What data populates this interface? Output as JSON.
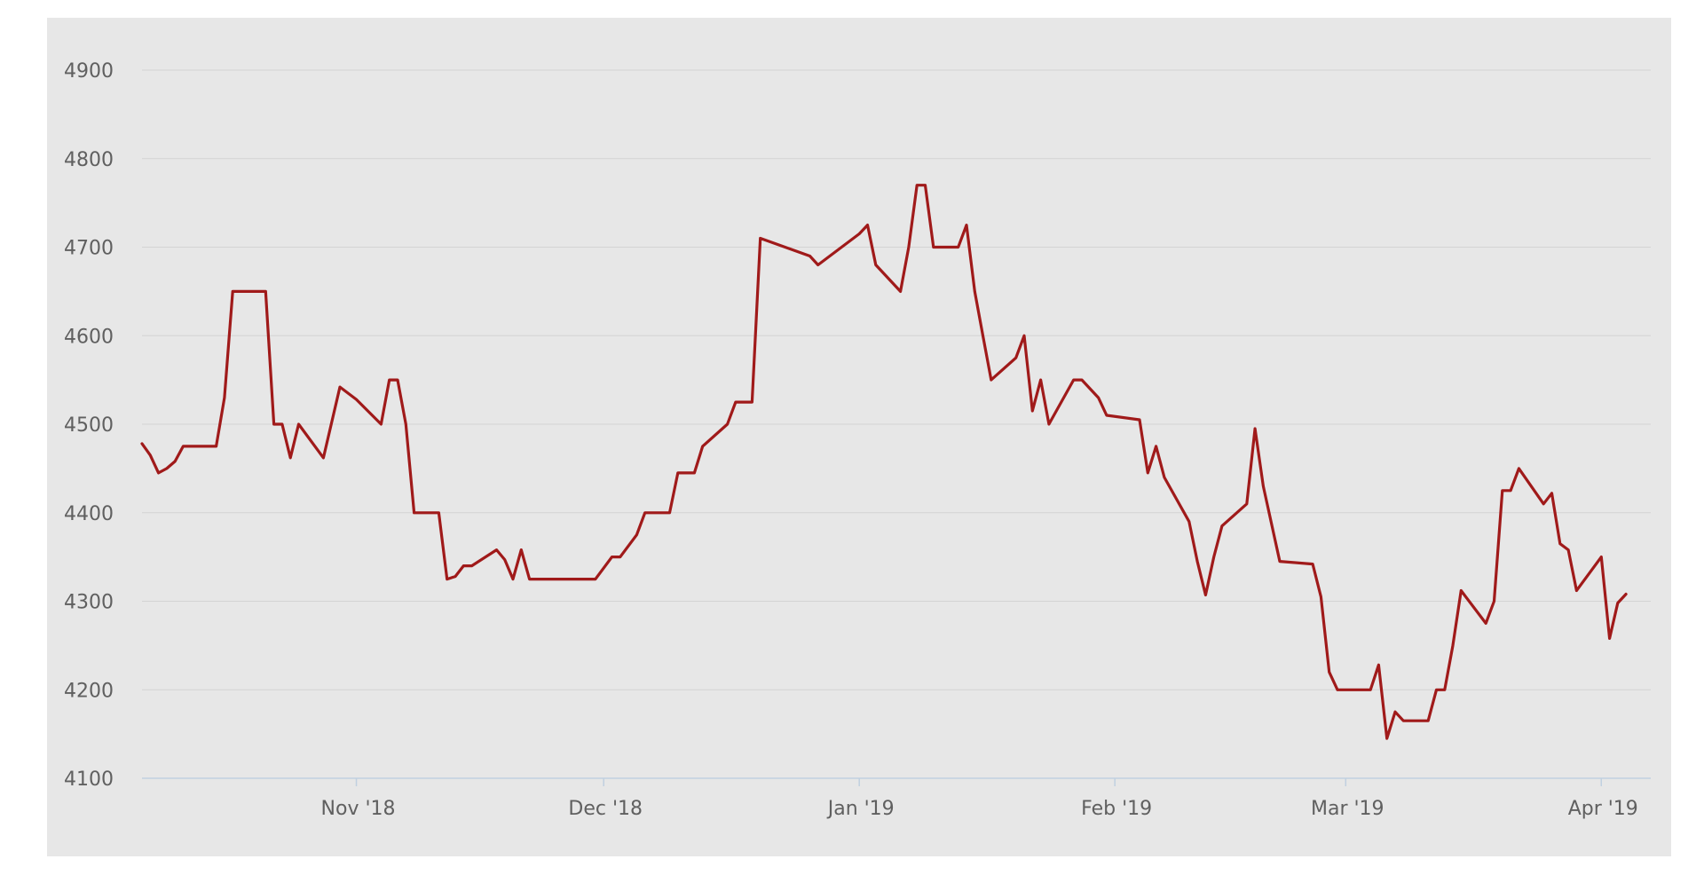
{
  "chart_data": {
    "type": "line",
    "title": "",
    "xlabel": "",
    "ylabel": "",
    "ylim": [
      4100,
      4900
    ],
    "xlim": [
      "2018-10-06",
      "2019-04-07"
    ],
    "y_ticks": [
      4100,
      4200,
      4300,
      4400,
      4500,
      4600,
      4700,
      4800,
      4900
    ],
    "x_ticks": [
      {
        "date": "2018-11-01",
        "label": "Nov '18"
      },
      {
        "date": "2018-12-01",
        "label": "Dec '18"
      },
      {
        "date": "2019-01-01",
        "label": "Jan '19"
      },
      {
        "date": "2019-02-01",
        "label": "Feb '19"
      },
      {
        "date": "2019-03-01",
        "label": "Mar '19"
      },
      {
        "date": "2019-04-01",
        "label": "Apr '19"
      }
    ],
    "grid": true,
    "legend": "none",
    "line_color": "#a01a1a",
    "series": [
      {
        "points": [
          [
            "2018-10-06",
            4478
          ],
          [
            "2018-10-07",
            4465
          ],
          [
            "2018-10-08",
            4445
          ],
          [
            "2018-10-09",
            4450
          ],
          [
            "2018-10-10",
            4458
          ],
          [
            "2018-10-11",
            4475
          ],
          [
            "2018-10-15",
            4475
          ],
          [
            "2018-10-16",
            4530
          ],
          [
            "2018-10-17",
            4650
          ],
          [
            "2018-10-21",
            4650
          ],
          [
            "2018-10-22",
            4500
          ],
          [
            "2018-10-23",
            4500
          ],
          [
            "2018-10-24",
            4462
          ],
          [
            "2018-10-25",
            4500
          ],
          [
            "2018-10-28",
            4462
          ],
          [
            "2018-10-30",
            4542
          ],
          [
            "2018-11-01",
            4528
          ],
          [
            "2018-11-04",
            4500
          ],
          [
            "2018-11-05",
            4550
          ],
          [
            "2018-11-06",
            4550
          ],
          [
            "2018-11-07",
            4500
          ],
          [
            "2018-11-08",
            4400
          ],
          [
            "2018-11-11",
            4400
          ],
          [
            "2018-11-12",
            4325
          ],
          [
            "2018-11-13",
            4328
          ],
          [
            "2018-11-14",
            4340
          ],
          [
            "2018-11-15",
            4340
          ],
          [
            "2018-11-18",
            4358
          ],
          [
            "2018-11-19",
            4347
          ],
          [
            "2018-11-20",
            4325
          ],
          [
            "2018-11-21",
            4358
          ],
          [
            "2018-11-22",
            4325
          ],
          [
            "2018-11-30",
            4325
          ],
          [
            "2018-12-02",
            4350
          ],
          [
            "2018-12-03",
            4350
          ],
          [
            "2018-12-05",
            4375
          ],
          [
            "2018-12-06",
            4400
          ],
          [
            "2018-12-09",
            4400
          ],
          [
            "2018-12-10",
            4445
          ],
          [
            "2018-12-12",
            4445
          ],
          [
            "2018-12-13",
            4475
          ],
          [
            "2018-12-16",
            4500
          ],
          [
            "2018-12-17",
            4525
          ],
          [
            "2018-12-19",
            4525
          ],
          [
            "2018-12-20",
            4710
          ],
          [
            "2018-12-26",
            4690
          ],
          [
            "2018-12-27",
            4680
          ],
          [
            "2019-01-01",
            4715
          ],
          [
            "2019-01-02",
            4725
          ],
          [
            "2019-01-03",
            4680
          ],
          [
            "2019-01-06",
            4650
          ],
          [
            "2019-01-07",
            4700
          ],
          [
            "2019-01-08",
            4770
          ],
          [
            "2019-01-09",
            4770
          ],
          [
            "2019-01-10",
            4700
          ],
          [
            "2019-01-13",
            4700
          ],
          [
            "2019-01-14",
            4725
          ],
          [
            "2019-01-15",
            4650
          ],
          [
            "2019-01-16",
            4600
          ],
          [
            "2019-01-17",
            4550
          ],
          [
            "2019-01-20",
            4575
          ],
          [
            "2019-01-21",
            4600
          ],
          [
            "2019-01-22",
            4515
          ],
          [
            "2019-01-23",
            4550
          ],
          [
            "2019-01-24",
            4500
          ],
          [
            "2019-01-27",
            4550
          ],
          [
            "2019-01-28",
            4550
          ],
          [
            "2019-01-30",
            4530
          ],
          [
            "2019-01-31",
            4510
          ],
          [
            "2019-02-04",
            4505
          ],
          [
            "2019-02-05",
            4445
          ],
          [
            "2019-02-06",
            4475
          ],
          [
            "2019-02-07",
            4440
          ],
          [
            "2019-02-10",
            4390
          ],
          [
            "2019-02-11",
            4345
          ],
          [
            "2019-02-12",
            4307
          ],
          [
            "2019-02-13",
            4350
          ],
          [
            "2019-02-14",
            4385
          ],
          [
            "2019-02-17",
            4410
          ],
          [
            "2019-02-18",
            4495
          ],
          [
            "2019-02-19",
            4430
          ],
          [
            "2019-02-21",
            4345
          ],
          [
            "2019-02-25",
            4342
          ],
          [
            "2019-02-26",
            4305
          ],
          [
            "2019-02-27",
            4220
          ],
          [
            "2019-02-28",
            4200
          ],
          [
            "2019-03-04",
            4200
          ],
          [
            "2019-03-05",
            4228
          ],
          [
            "2019-03-06",
            4145
          ],
          [
            "2019-03-07",
            4175
          ],
          [
            "2019-03-08",
            4165
          ],
          [
            "2019-03-11",
            4165
          ],
          [
            "2019-03-12",
            4200
          ],
          [
            "2019-03-13",
            4200
          ],
          [
            "2019-03-14",
            4250
          ],
          [
            "2019-03-15",
            4312
          ],
          [
            "2019-03-18",
            4275
          ],
          [
            "2019-03-19",
            4300
          ],
          [
            "2019-03-20",
            4425
          ],
          [
            "2019-03-21",
            4425
          ],
          [
            "2019-03-22",
            4450
          ],
          [
            "2019-03-25",
            4410
          ],
          [
            "2019-03-26",
            4422
          ],
          [
            "2019-03-27",
            4365
          ],
          [
            "2019-03-28",
            4358
          ],
          [
            "2019-03-29",
            4312
          ],
          [
            "2019-04-01",
            4350
          ],
          [
            "2019-04-02",
            4258
          ],
          [
            "2019-04-03",
            4298
          ],
          [
            "2019-04-04",
            4308
          ]
        ]
      }
    ]
  }
}
